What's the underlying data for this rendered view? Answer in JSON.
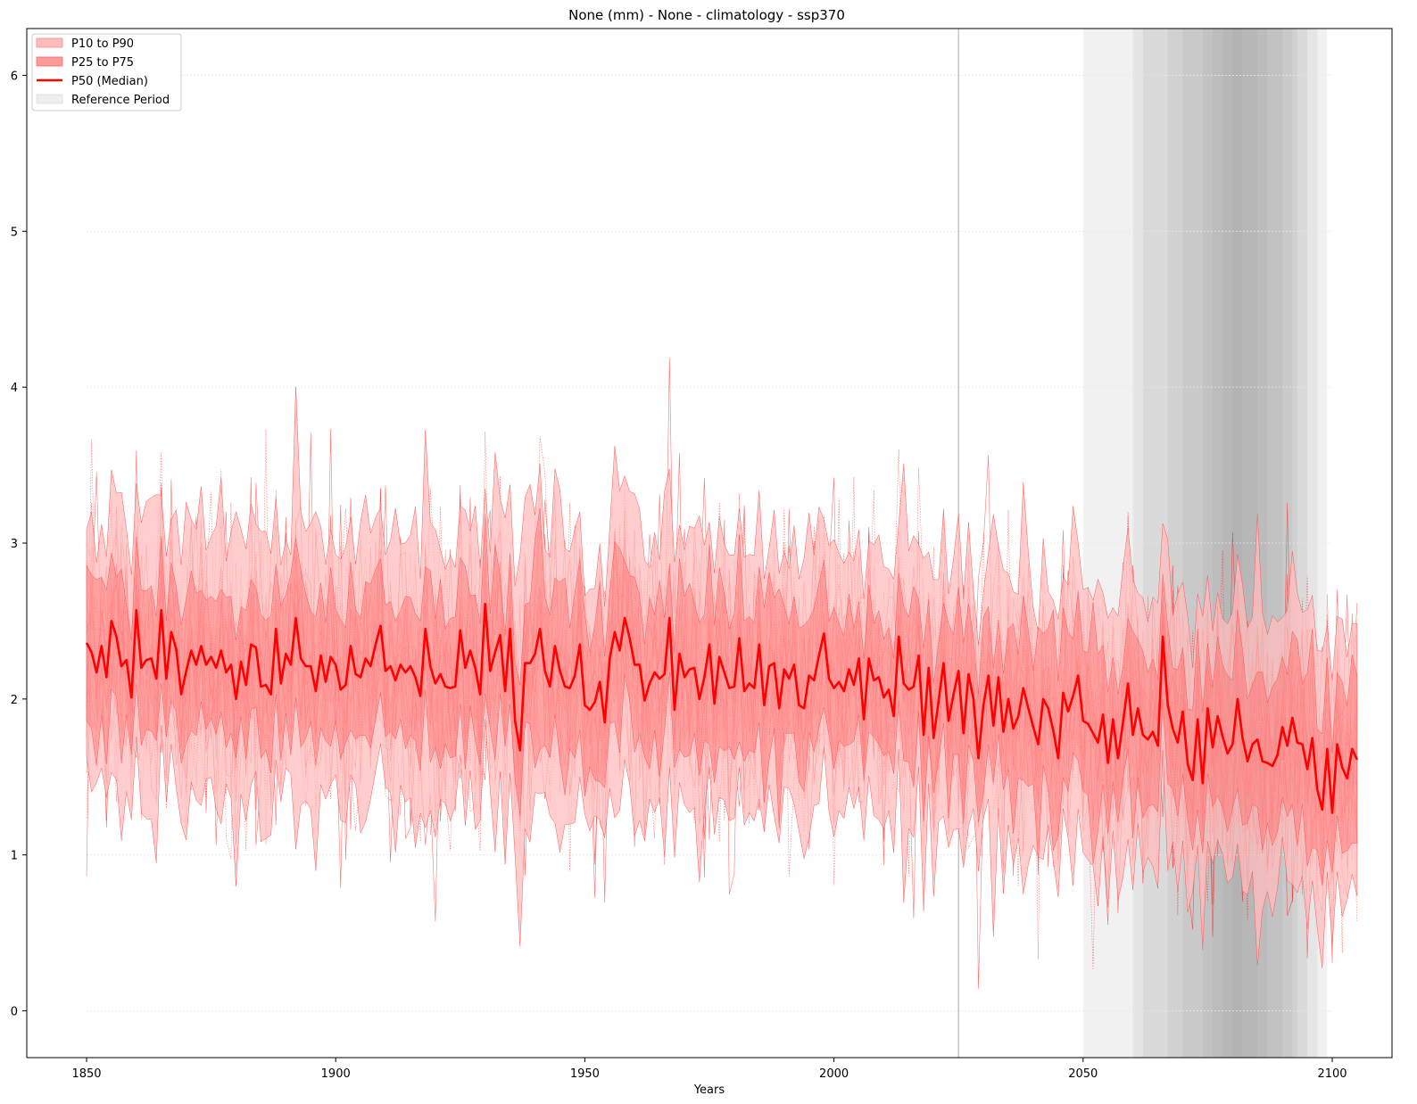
{
  "chart_data": {
    "type": "line",
    "title": "None (mm) - None - climatology  - ssp370",
    "xlabel": "Years",
    "ylabel": "",
    "xlim": [
      1838,
      2112
    ],
    "ylim": [
      -0.3,
      6.3
    ],
    "x_ticks": [
      1850,
      1900,
      1950,
      2000,
      2050,
      2100
    ],
    "y_ticks": [
      0,
      1,
      2,
      3,
      4,
      5,
      6
    ],
    "grid": "horizontal, faint",
    "legend_position": "top-left",
    "legend": [
      {
        "label": "P10 to P90",
        "kind": "fill",
        "color": "#ffbcbc"
      },
      {
        "label": "P25 to P75",
        "kind": "fill",
        "color": "#ff9a9a"
      },
      {
        "label": "P50 (Median)",
        "kind": "line",
        "color": "#ff0000"
      },
      {
        "label": "Reference Period",
        "kind": "fill",
        "color": "#eeeeee"
      }
    ],
    "current_year_marker": 2025,
    "reference_periods": [
      [
        2050,
        2099
      ],
      [
        2060,
        2097
      ],
      [
        2062,
        2095
      ],
      [
        2067,
        2093
      ],
      [
        2070,
        2092
      ],
      [
        2074,
        2090
      ],
      [
        2076,
        2087
      ],
      [
        2078,
        2085
      ],
      [
        2080,
        2082
      ]
    ],
    "median_years": [
      1850,
      2100
    ],
    "median": [
      2.36,
      2.3,
      2.17,
      2.34,
      2.14,
      2.5,
      2.4,
      2.21,
      2.25,
      2.01,
      2.57,
      2.2,
      2.25,
      2.26,
      2.13,
      2.57,
      2.13,
      2.43,
      2.32,
      2.03,
      2.18,
      2.31,
      2.22,
      2.34,
      2.22,
      2.27,
      2.2,
      2.31,
      2.17,
      2.22,
      2.0,
      2.24,
      2.09,
      2.35,
      2.33,
      2.08,
      2.09,
      2.03,
      2.45,
      2.1,
      2.29,
      2.22,
      2.52,
      2.26,
      2.21,
      2.21,
      2.05,
      2.28,
      2.11,
      2.27,
      2.22,
      2.06,
      2.09,
      2.34,
      2.16,
      2.14,
      2.26,
      2.21,
      2.35,
      2.47,
      2.18,
      2.21,
      2.12,
      2.22,
      2.17,
      2.21,
      2.14,
      2.02,
      2.45,
      2.21,
      2.1,
      2.16,
      2.08,
      2.07,
      2.08,
      2.44,
      2.2,
      2.31,
      2.2,
      2.03,
      2.61,
      2.18,
      2.3,
      2.41,
      2.05,
      2.45,
      1.86,
      1.67,
      2.23,
      2.23,
      2.29,
      2.45,
      2.18,
      2.08,
      2.34,
      2.18,
      2.08,
      2.07,
      2.15,
      2.35,
      1.96,
      1.93,
      1.98,
      2.11,
      1.85,
      2.26,
      2.43,
      2.31,
      2.52,
      2.39,
      2.22,
      2.22,
      1.99,
      2.1,
      2.17,
      2.13,
      2.16,
      2.52,
      1.93,
      2.29,
      2.14,
      2.19,
      2.2,
      2.0,
      2.14,
      2.35,
      1.97,
      2.27,
      2.17,
      2.07,
      2.08,
      2.39,
      2.05,
      2.1,
      2.07,
      2.35,
      1.96,
      2.21,
      2.23,
      1.94,
      2.19,
      2.13,
      2.22,
      1.96,
      1.94,
      2.15,
      2.12,
      2.28,
      2.42,
      2.13,
      2.07,
      2.11,
      2.05,
      2.19,
      2.09,
      2.26,
      1.87,
      2.26,
      2.12,
      2.14,
      2.01,
      2.06,
      1.89,
      2.4,
      2.1,
      2.06,
      2.08,
      2.28,
      1.77,
      2.2,
      1.75,
      1.99,
      2.23,
      1.86,
      2.03,
      2.18,
      1.78,
      2.16,
      2.0,
      1.62,
      1.96,
      2.15,
      1.83,
      2.14,
      1.79,
      2.0,
      1.81,
      1.89,
      2.07,
      1.94,
      1.82,
      1.71,
      2.0,
      1.94,
      1.8,
      1.62,
      2.04,
      1.92,
      2.02,
      2.15,
      1.86,
      1.84,
      1.78,
      1.72,
      1.9,
      1.59,
      1.87,
      1.62,
      1.85,
      2.1,
      1.77,
      1.94,
      1.77,
      1.74,
      1.79,
      1.7,
      2.4,
      1.96,
      1.81,
      1.72,
      1.92,
      1.58,
      1.48,
      1.87,
      1.46,
      1.94,
      1.69,
      1.89,
      1.76,
      1.65,
      1.71,
      2.0,
      1.75,
      1.6,
      1.71,
      1.74,
      1.6,
      1.59,
      1.57,
      1.64,
      1.82,
      1.7,
      1.88,
      1.72,
      1.71,
      1.55,
      1.75,
      1.42,
      1.29,
      1.68,
      1.27,
      1.71,
      1.56,
      1.49,
      1.68,
      1.61
    ]
  }
}
